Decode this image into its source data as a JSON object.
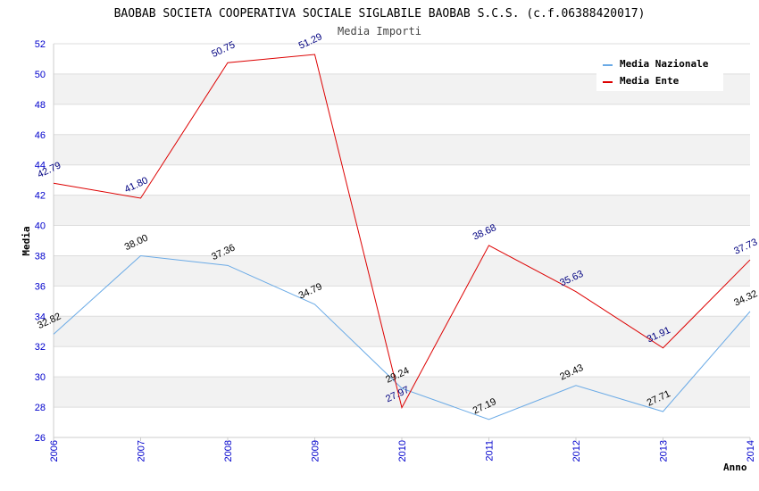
{
  "chart_data": {
    "type": "line",
    "title": "BAOBAB SOCIETA COOPERATIVA SOCIALE SIGLABILE BAOBAB S.C.S. (c.f.06388420017)",
    "subtitle": "Media Importi",
    "xlabel": "Anno",
    "ylabel": "Media",
    "x": [
      "2006",
      "2007",
      "2008",
      "2009",
      "2010",
      "2011",
      "2012",
      "2013",
      "2014"
    ],
    "ylim": [
      26,
      52
    ],
    "yticks": [
      "26",
      "28",
      "30",
      "32",
      "34",
      "36",
      "38",
      "40",
      "42",
      "44",
      "46",
      "48",
      "50",
      "52"
    ],
    "grid": true,
    "legend_position": "top-right",
    "series": [
      {
        "name": "Media Nazionale",
        "color": "#6aaae6",
        "label_color": "#000000",
        "values": [
          32.82,
          38.0,
          37.36,
          34.79,
          29.24,
          27.19,
          29.43,
          27.71,
          34.32
        ],
        "labels": [
          "32.82",
          "38.00",
          "37.36",
          "34.79",
          "29.24",
          "27.19",
          "29.43",
          "27.71",
          "34.32"
        ]
      },
      {
        "name": "Media Ente",
        "color": "#dd0000",
        "label_color": "#000080",
        "values": [
          42.79,
          41.8,
          50.75,
          51.29,
          27.97,
          38.68,
          35.63,
          31.91,
          37.73
        ],
        "labels": [
          "42.79",
          "41.80",
          "50.75",
          "51.29",
          "27.97",
          "38.68",
          "35.63",
          "31.91",
          "37.73"
        ]
      }
    ]
  }
}
